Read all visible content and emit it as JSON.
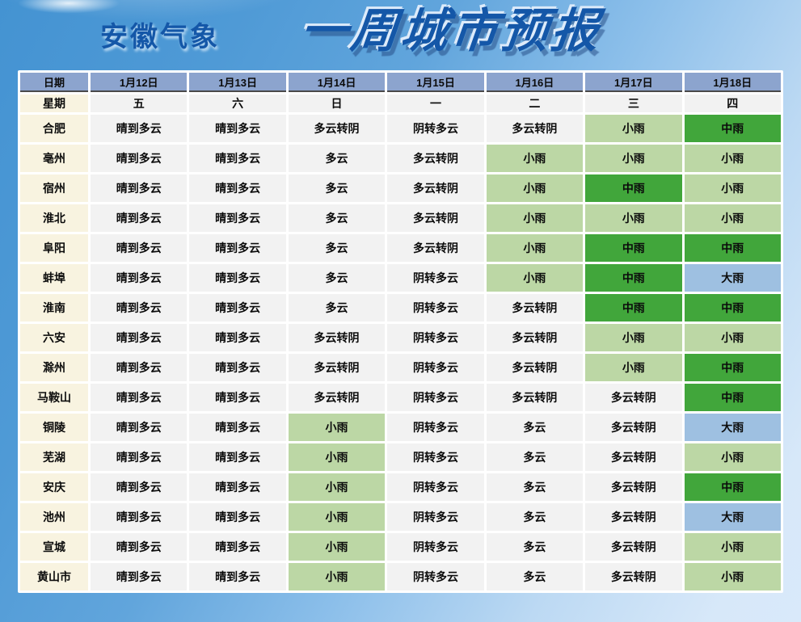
{
  "page": {
    "station_title": "安徽气象",
    "main_title": "一周城市预报"
  },
  "colors": {
    "title_color": "#1457A8",
    "header_bg": "#8CA4CE",
    "city_col_bg": "#F8F3E0",
    "cell_default_bg": "#F2F2F2",
    "rain_light": "#BCD7A5",
    "rain_moderate": "#41A63B",
    "rain_heavy": "#9EC0E1",
    "header_divider": "#4A4A4A"
  },
  "chart_data": {
    "type": "table",
    "title": "一周城市预报",
    "corner_label": "日期",
    "week_label": "星期",
    "columns": [
      "1月12日",
      "1月13日",
      "1月14日",
      "1月15日",
      "1月16日",
      "1月17日",
      "1月18日"
    ],
    "weekdays": [
      "五",
      "六",
      "日",
      "一",
      "二",
      "三",
      "四"
    ],
    "cell_color_rules": {
      "小雨": "light",
      "中雨": "mid",
      "大雨": "heavy"
    },
    "rows": [
      {
        "city": "合肥",
        "values": [
          "晴到多云",
          "晴到多云",
          "多云转阴",
          "阴转多云",
          "多云转阴",
          "小雨",
          "中雨"
        ]
      },
      {
        "city": "亳州",
        "values": [
          "晴到多云",
          "晴到多云",
          "多云",
          "多云转阴",
          "小雨",
          "小雨",
          "小雨"
        ]
      },
      {
        "city": "宿州",
        "values": [
          "晴到多云",
          "晴到多云",
          "多云",
          "多云转阴",
          "小雨",
          "中雨",
          "小雨"
        ]
      },
      {
        "city": "淮北",
        "values": [
          "晴到多云",
          "晴到多云",
          "多云",
          "多云转阴",
          "小雨",
          "小雨",
          "小雨"
        ]
      },
      {
        "city": "阜阳",
        "values": [
          "晴到多云",
          "晴到多云",
          "多云",
          "多云转阴",
          "小雨",
          "中雨",
          "中雨"
        ]
      },
      {
        "city": "蚌埠",
        "values": [
          "晴到多云",
          "晴到多云",
          "多云",
          "阴转多云",
          "小雨",
          "中雨",
          "大雨"
        ]
      },
      {
        "city": "淮南",
        "values": [
          "晴到多云",
          "晴到多云",
          "多云",
          "阴转多云",
          "多云转阴",
          "中雨",
          "中雨"
        ]
      },
      {
        "city": "六安",
        "values": [
          "晴到多云",
          "晴到多云",
          "多云转阴",
          "阴转多云",
          "多云转阴",
          "小雨",
          "小雨"
        ]
      },
      {
        "city": "滁州",
        "values": [
          "晴到多云",
          "晴到多云",
          "多云转阴",
          "阴转多云",
          "多云转阴",
          "小雨",
          "中雨"
        ]
      },
      {
        "city": "马鞍山",
        "values": [
          "晴到多云",
          "晴到多云",
          "多云转阴",
          "阴转多云",
          "多云转阴",
          "多云转阴",
          "中雨"
        ]
      },
      {
        "city": "铜陵",
        "values": [
          "晴到多云",
          "晴到多云",
          "小雨",
          "阴转多云",
          "多云",
          "多云转阴",
          "大雨"
        ]
      },
      {
        "city": "芜湖",
        "values": [
          "晴到多云",
          "晴到多云",
          "小雨",
          "阴转多云",
          "多云",
          "多云转阴",
          "小雨"
        ]
      },
      {
        "city": "安庆",
        "values": [
          "晴到多云",
          "晴到多云",
          "小雨",
          "阴转多云",
          "多云",
          "多云转阴",
          "中雨"
        ]
      },
      {
        "city": "池州",
        "values": [
          "晴到多云",
          "晴到多云",
          "小雨",
          "阴转多云",
          "多云",
          "多云转阴",
          "大雨"
        ]
      },
      {
        "city": "宣城",
        "values": [
          "晴到多云",
          "晴到多云",
          "小雨",
          "阴转多云",
          "多云",
          "多云转阴",
          "小雨"
        ]
      },
      {
        "city": "黄山市",
        "values": [
          "晴到多云",
          "晴到多云",
          "小雨",
          "阴转多云",
          "多云",
          "多云转阴",
          "小雨"
        ]
      }
    ]
  }
}
